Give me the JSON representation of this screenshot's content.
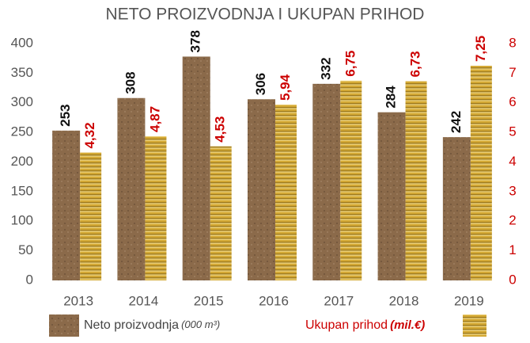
{
  "chart_data": {
    "type": "bar",
    "title": "NETO PROIZVODNJA I UKUPAN PRIHOD",
    "categories": [
      "2013",
      "2014",
      "2015",
      "2016",
      "2017",
      "2018",
      "2019"
    ],
    "series": [
      {
        "name": "Neto proizvodnja",
        "unit": "(000 m³)",
        "color": "#8b6a4a",
        "label_color": "#111111",
        "values": [
          253,
          308,
          378,
          306,
          332,
          284,
          242
        ]
      },
      {
        "name": "Ukupan prihod",
        "unit": "(mil.€)",
        "color": "#d4a935",
        "label_color": "#cc0000",
        "axis": "y2",
        "values": [
          4.32,
          4.87,
          4.53,
          5.94,
          6.75,
          6.73,
          7.25
        ],
        "value_labels": [
          "4,32",
          "4,87",
          "4,53",
          "5,94",
          "6,75",
          "6,73",
          "7,25"
        ]
      }
    ],
    "ylim": [
      0,
      400
    ],
    "yticks": [
      0,
      50,
      100,
      150,
      200,
      250,
      300,
      350,
      400
    ],
    "y2lim": [
      0,
      8
    ],
    "y2ticks": [
      0,
      1,
      2,
      3,
      4,
      5,
      6,
      7,
      8
    ],
    "y2_color": "#cc0000",
    "grid": false
  }
}
